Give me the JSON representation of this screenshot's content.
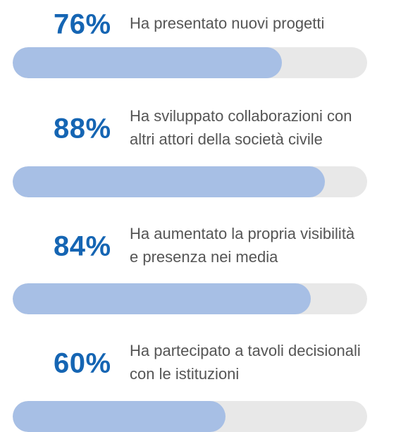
{
  "chart_data": {
    "type": "bar",
    "orientation": "horizontal",
    "categories": [
      "Ha presentato nuovi progetti",
      "Ha sviluppato collaborazioni con\naltri attori della società civile",
      "Ha aumentato la propria visibilità\ne presenza nei media",
      "Ha partecipato a tavoli decisionali\ncon le istituzioni"
    ],
    "values": [
      76,
      88,
      84,
      60
    ],
    "value_labels": [
      "76%",
      "88%",
      "84%",
      "60%"
    ],
    "xlim": [
      0,
      100
    ],
    "color": "#a7bfe5",
    "track_color": "#e8e8e8"
  }
}
